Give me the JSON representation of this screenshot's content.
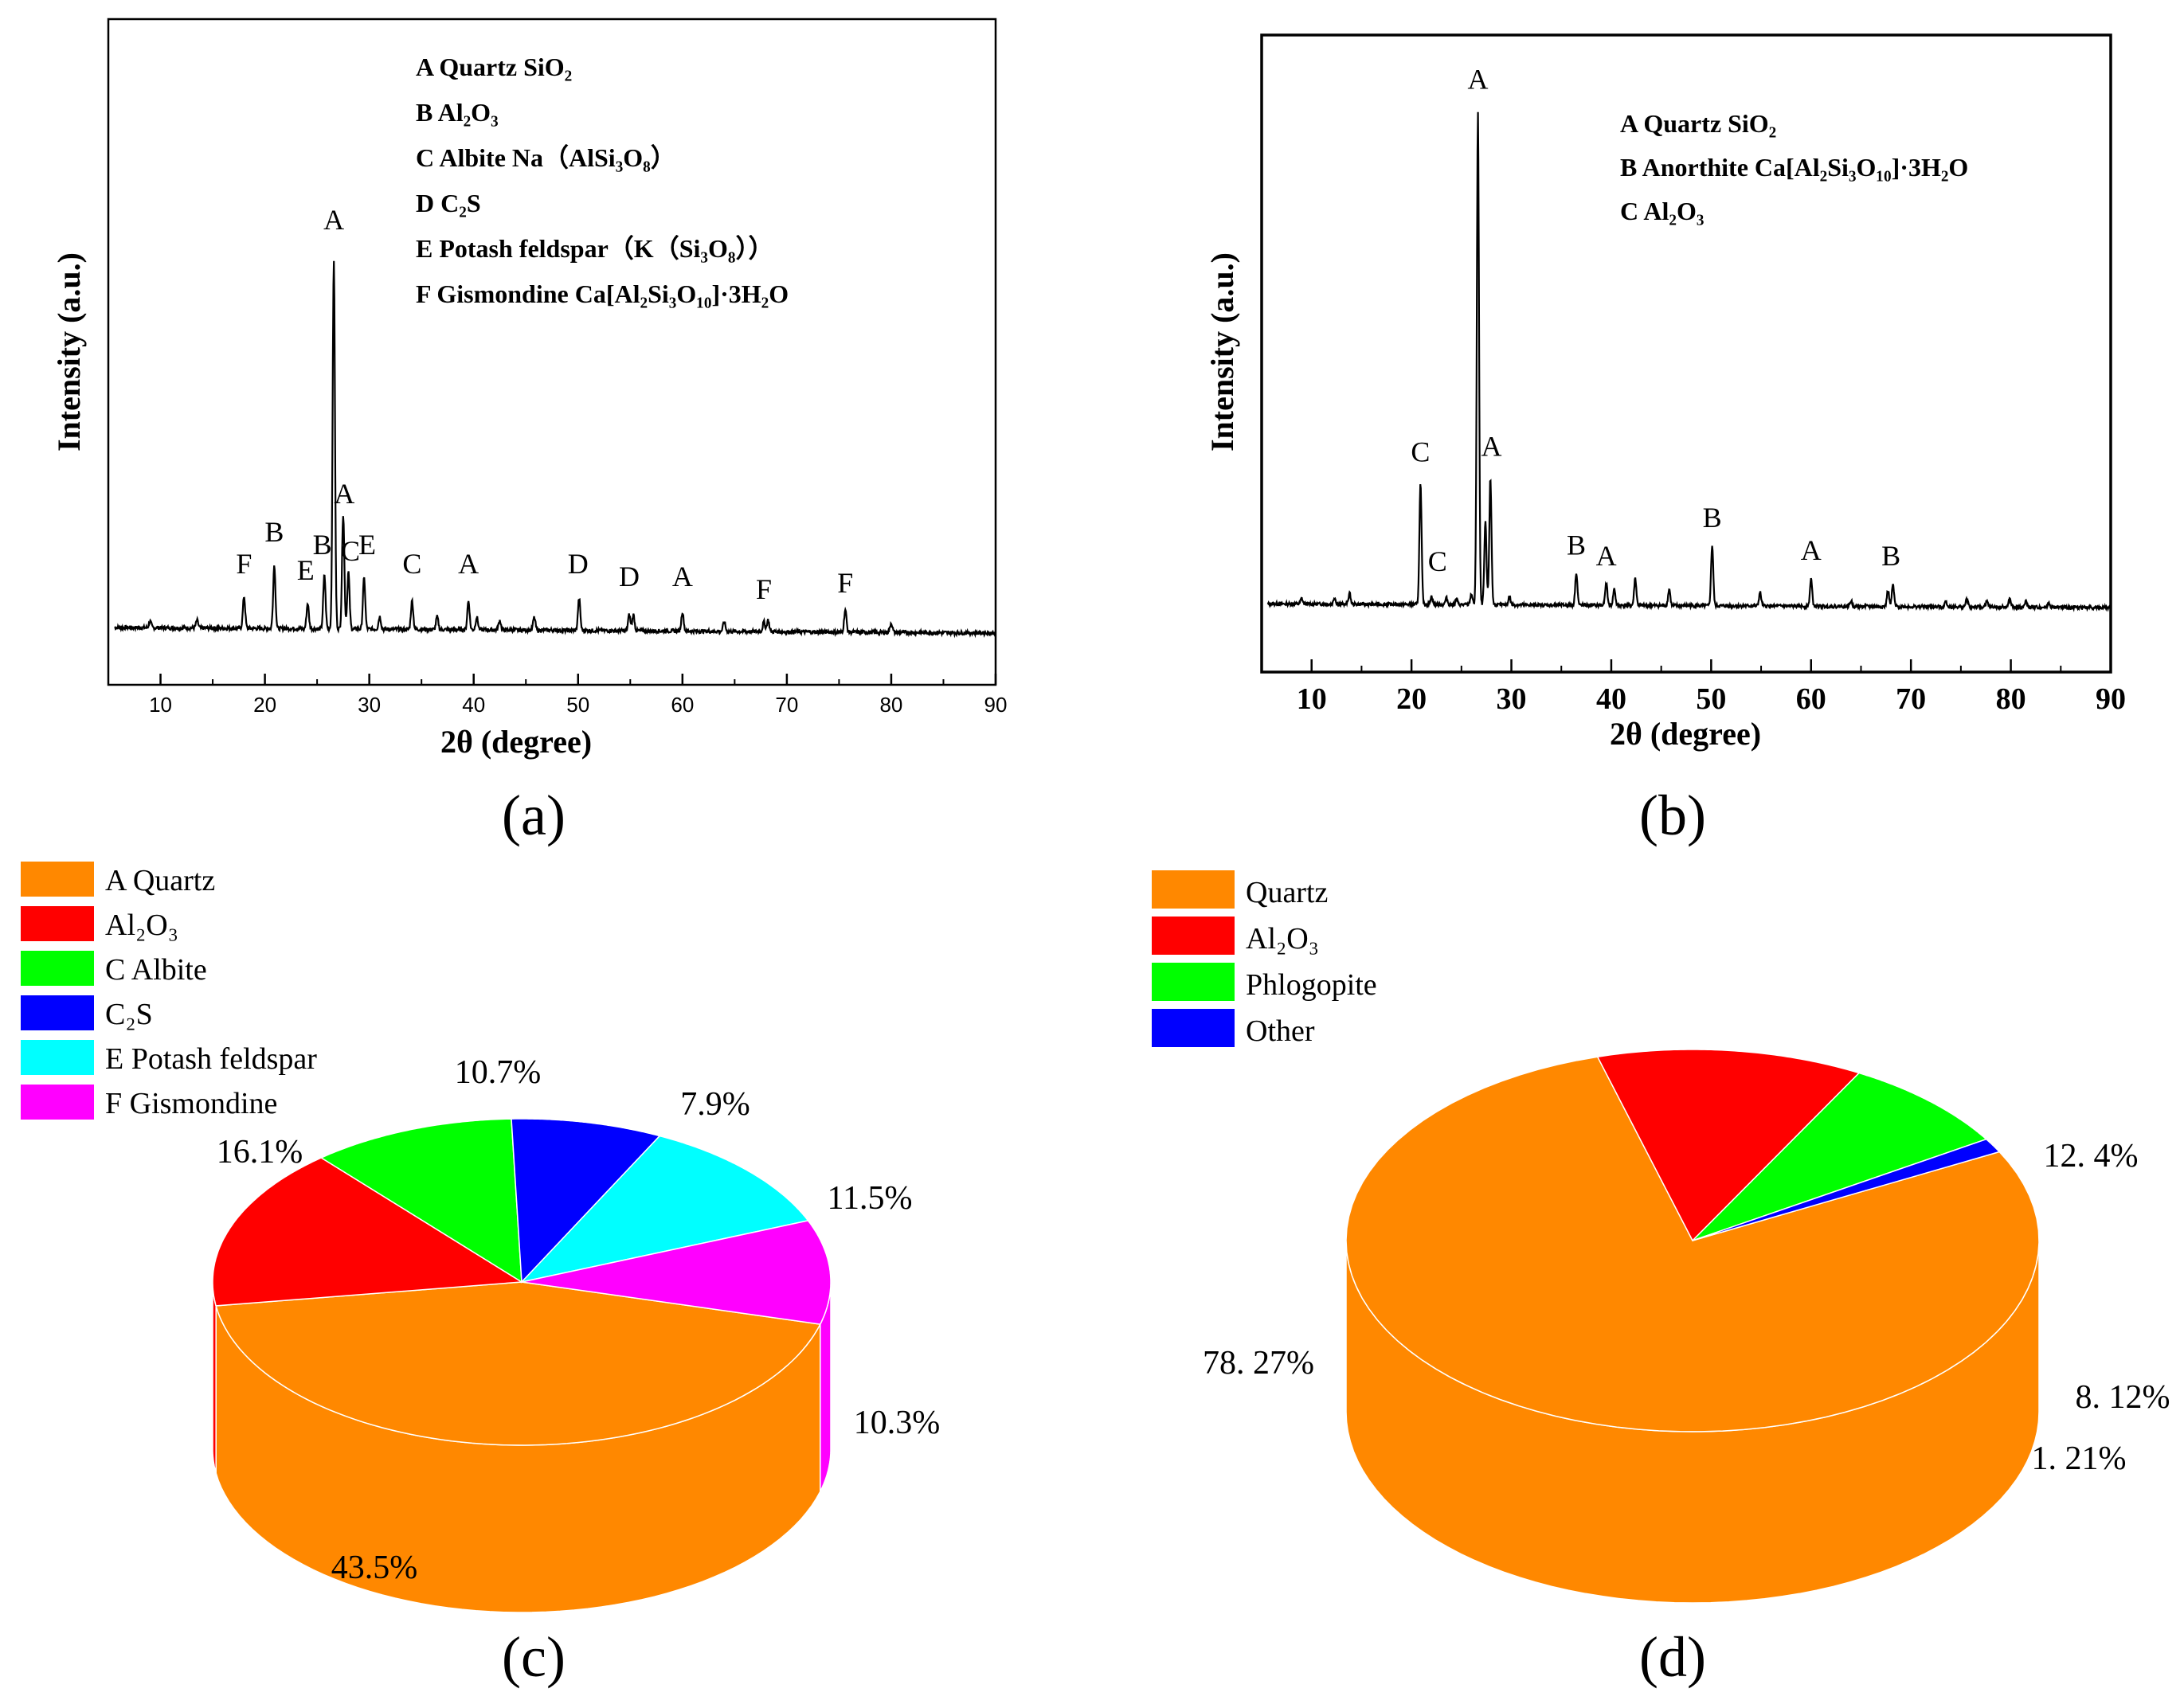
{
  "panels": {
    "a": {
      "label": "(a)",
      "chart_data": {
        "type": "line",
        "title": "",
        "xlabel": "2θ (degree)",
        "ylabel": "Intensity (a.u.)",
        "xlim": [
          5,
          90
        ],
        "xticks": [
          10,
          20,
          30,
          40,
          50,
          60,
          70,
          80,
          90
        ],
        "ylim": [
          0,
          100
        ],
        "series": [
          {
            "name": "XRD pattern (a)",
            "baseline": 2.5,
            "peaks": [
              {
                "x": 9.0,
                "y": 1.0
              },
              {
                "x": 13.5,
                "y": 1.2
              },
              {
                "x": 18.0,
                "y": 5.0
              },
              {
                "x": 20.9,
                "y": 10.0
              },
              {
                "x": 24.1,
                "y": 4.0
              },
              {
                "x": 25.7,
                "y": 8.5
              },
              {
                "x": 26.6,
                "y": 58.0
              },
              {
                "x": 27.5,
                "y": 18.0
              },
              {
                "x": 28.0,
                "y": 9.0
              },
              {
                "x": 29.5,
                "y": 8.0
              },
              {
                "x": 31.0,
                "y": 2.0
              },
              {
                "x": 34.1,
                "y": 4.5
              },
              {
                "x": 36.5,
                "y": 2.0
              },
              {
                "x": 39.5,
                "y": 4.5
              },
              {
                "x": 40.3,
                "y": 2.0
              },
              {
                "x": 42.5,
                "y": 1.5
              },
              {
                "x": 45.8,
                "y": 2.0
              },
              {
                "x": 50.1,
                "y": 5.0
              },
              {
                "x": 54.9,
                "y": 2.5
              },
              {
                "x": 55.3,
                "y": 2.5
              },
              {
                "x": 60.0,
                "y": 3.0
              },
              {
                "x": 64.0,
                "y": 1.5
              },
              {
                "x": 67.8,
                "y": 1.5
              },
              {
                "x": 68.2,
                "y": 1.8
              },
              {
                "x": 75.6,
                "y": 3.5
              },
              {
                "x": 80.0,
                "y": 1.5
              }
            ]
          }
        ],
        "annotations": [
          {
            "text": "F",
            "x": 18.0,
            "y": 11
          },
          {
            "text": "B",
            "x": 20.9,
            "y": 16
          },
          {
            "text": "E",
            "x": 23.9,
            "y": 10
          },
          {
            "text": "B",
            "x": 25.5,
            "y": 14
          },
          {
            "text": "A",
            "x": 26.6,
            "y": 65
          },
          {
            "text": "A",
            "x": 27.6,
            "y": 22
          },
          {
            "text": "C",
            "x": 28.2,
            "y": 13
          },
          {
            "text": "E",
            "x": 29.8,
            "y": 14
          },
          {
            "text": "C",
            "x": 34.1,
            "y": 11
          },
          {
            "text": "A",
            "x": 39.5,
            "y": 11
          },
          {
            "text": "D",
            "x": 50.0,
            "y": 11
          },
          {
            "text": "D",
            "x": 54.9,
            "y": 9
          },
          {
            "text": "A",
            "x": 60.0,
            "y": 9
          },
          {
            "text": "F",
            "x": 67.8,
            "y": 7
          },
          {
            "text": "F",
            "x": 75.6,
            "y": 8
          }
        ],
        "legend": [
          "A Quartz SiO₂",
          "B Al₂O₃",
          "C Albite Na（AlSi₃O₈）",
          "D C₂S",
          "E Potash feldspar（K（Si₃O₈））",
          "F Gismondine  Ca[Al₂Si₃O₁₀]·3H₂O"
        ]
      }
    },
    "b": {
      "label": "(b)",
      "chart_data": {
        "type": "line",
        "title": "",
        "xlabel": "2θ (degree)",
        "ylabel": "Intensity (a.u.)",
        "xlim": [
          5,
          90
        ],
        "xticks": [
          10,
          20,
          30,
          40,
          50,
          60,
          70,
          80,
          90
        ],
        "ylim": [
          0,
          100
        ],
        "series": [
          {
            "name": "XRD pattern (b)",
            "baseline": 2.0,
            "peaks": [
              {
                "x": 9.0,
                "y": 1.0
              },
              {
                "x": 12.3,
                "y": 1.2
              },
              {
                "x": 13.8,
                "y": 2.0
              },
              {
                "x": 20.9,
                "y": 22.0
              },
              {
                "x": 22.0,
                "y": 1.5
              },
              {
                "x": 23.5,
                "y": 1.2
              },
              {
                "x": 24.5,
                "y": 1.0
              },
              {
                "x": 26.0,
                "y": 2.0
              },
              {
                "x": 26.65,
                "y": 90.0
              },
              {
                "x": 27.4,
                "y": 15.0
              },
              {
                "x": 27.9,
                "y": 23.0
              },
              {
                "x": 29.8,
                "y": 1.5
              },
              {
                "x": 36.5,
                "y": 6.0
              },
              {
                "x": 39.5,
                "y": 4.0
              },
              {
                "x": 40.3,
                "y": 3.0
              },
              {
                "x": 42.4,
                "y": 5.0
              },
              {
                "x": 45.8,
                "y": 3.0
              },
              {
                "x": 50.1,
                "y": 11.0
              },
              {
                "x": 54.9,
                "y": 2.5
              },
              {
                "x": 60.0,
                "y": 5.0
              },
              {
                "x": 64.0,
                "y": 1.0
              },
              {
                "x": 67.7,
                "y": 3.0
              },
              {
                "x": 68.2,
                "y": 4.0
              },
              {
                "x": 73.5,
                "y": 1.0
              },
              {
                "x": 75.6,
                "y": 1.5
              },
              {
                "x": 77.6,
                "y": 1.0
              },
              {
                "x": 79.9,
                "y": 1.5
              },
              {
                "x": 81.5,
                "y": 1.0
              },
              {
                "x": 83.8,
                "y": 0.8
              }
            ]
          }
        ],
        "annotations": [
          {
            "text": "C",
            "x": 20.9,
            "y": 28
          },
          {
            "text": "C",
            "x": 22.6,
            "y": 8
          },
          {
            "text": "A",
            "x": 26.65,
            "y": 96
          },
          {
            "text": "A",
            "x": 28.0,
            "y": 29
          },
          {
            "text": "B",
            "x": 36.5,
            "y": 11
          },
          {
            "text": "A",
            "x": 39.5,
            "y": 9
          },
          {
            "text": "B",
            "x": 50.1,
            "y": 16
          },
          {
            "text": "A",
            "x": 60.0,
            "y": 10
          },
          {
            "text": "B",
            "x": 68.0,
            "y": 9
          }
        ],
        "legend": [
          "A  Quartz SiO₂",
          "B  Anorthite Ca[Al₂Si₃O₁₀]·3H₂O",
          "C  Al₂O₃"
        ]
      }
    },
    "c": {
      "label": "(c)",
      "chart_data": {
        "type": "pie",
        "title": "",
        "slices": [
          {
            "name": "A Quartz",
            "value": 43.5,
            "label": "43.5%",
            "color": "#ff8800"
          },
          {
            "name": "Al₂O₃",
            "value": 16.1,
            "label": "16.1%",
            "color": "#ff0000"
          },
          {
            "name": "C Albite",
            "value": 10.7,
            "label": "10.7%",
            "color": "#00ff00"
          },
          {
            "name": "C₂S",
            "value": 7.9,
            "label": "7.9%",
            "color": "#0000ff"
          },
          {
            "name": "E Potash feldspar",
            "value": 11.5,
            "label": "11.5%",
            "color": "#00ffff"
          },
          {
            "name": "F Gismondine",
            "value": 10.3,
            "label": "10.3%",
            "color": "#ff00ff"
          }
        ]
      }
    },
    "d": {
      "label": "(d)",
      "chart_data": {
        "type": "pie",
        "title": "",
        "slices": [
          {
            "name": "Quartz",
            "value": 78.27,
            "label": "78. 27%",
            "color": "#ff8800"
          },
          {
            "name": "Al₂O₃",
            "value": 12.4,
            "label": "12. 4%",
            "color": "#ff0000"
          },
          {
            "name": "Phlogopite",
            "value": 8.12,
            "label": "8. 12%",
            "color": "#00ff00"
          },
          {
            "name": "Other",
            "value": 1.21,
            "label": "1. 21%",
            "color": "#0000ff"
          }
        ]
      }
    }
  }
}
